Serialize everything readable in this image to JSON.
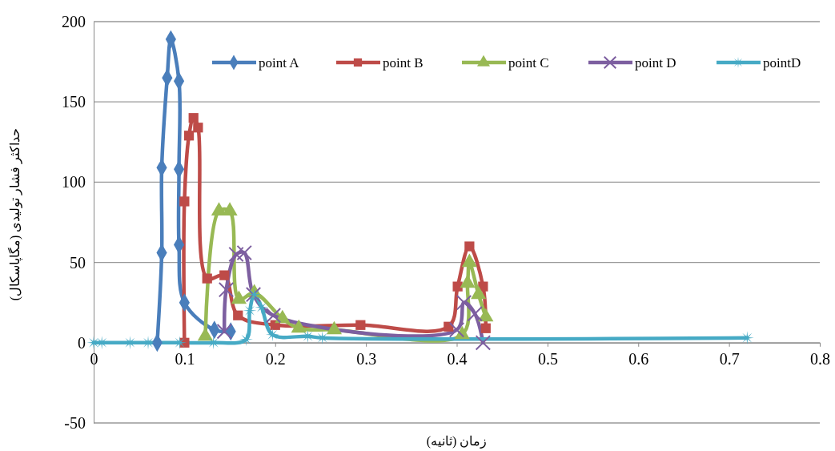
{
  "chart_data": {
    "type": "line",
    "xlabel": "زمان (ثانیه)",
    "ylabel": "حداکثر فشار تولیدی (مگاپاسکال)",
    "xlim": [
      0,
      0.8
    ],
    "xticks": [
      0,
      0.1,
      0.2,
      0.3,
      0.4,
      0.5,
      0.6,
      0.7,
      0.8
    ],
    "ylim": [
      -50,
      200
    ],
    "yticks": [
      -50,
      0,
      50,
      100,
      150,
      200
    ],
    "grid": "y",
    "legend": "top right",
    "line_style": "solid",
    "series": [
      {
        "name": "point A",
        "color": "#4a7ebb",
        "marker": "diamond",
        "x": [
          0.07,
          0.075,
          0.075,
          0.081,
          0.085,
          0.094,
          0.094,
          0.094,
          0.1,
          0.133,
          0.151
        ],
        "values": [
          0,
          56,
          109,
          165,
          189,
          163,
          108,
          61,
          25,
          8,
          7
        ]
      },
      {
        "name": "point B",
        "color": "#be4b48",
        "marker": "square",
        "x": [
          0.1,
          0.1,
          0.105,
          0.11,
          0.115,
          0.125,
          0.144,
          0.159,
          0.2,
          0.294,
          0.391,
          0.401,
          0.414,
          0.429,
          0.432
        ],
        "values": [
          0,
          88,
          129,
          140,
          134,
          40,
          42,
          17,
          11,
          11,
          10,
          35,
          60,
          35,
          9
        ]
      },
      {
        "name": "point C",
        "color": "#98b954",
        "marker": "triangle",
        "x": [
          0.123,
          0.138,
          0.15,
          0.16,
          0.177,
          0.208,
          0.226,
          0.265,
          0.406,
          0.412,
          0.414,
          0.424,
          0.432
        ],
        "values": [
          4,
          82,
          82,
          27,
          31,
          15,
          9,
          8,
          5,
          37,
          50,
          30,
          16
        ]
      },
      {
        "name": "point D",
        "color": "#7d5fa0",
        "marker": "cross",
        "x": [
          0.144,
          0.146,
          0.157,
          0.166,
          0.176,
          0.198,
          0.4,
          0.408,
          0.42,
          0.429
        ],
        "values": [
          7,
          33,
          55,
          56,
          30,
          17,
          8,
          25,
          18,
          0
        ]
      },
      {
        "name": "pointD",
        "color": "#46aac5",
        "marker": "star",
        "x": [
          0,
          0.009,
          0.04,
          0.06,
          0.095,
          0.132,
          0.168,
          0.172,
          0.177,
          0.185,
          0.197,
          0.236,
          0.252,
          0.72
        ],
        "values": [
          0,
          0,
          0,
          0,
          0,
          0,
          2,
          20,
          30,
          22,
          5,
          4,
          3,
          3
        ]
      }
    ]
  }
}
